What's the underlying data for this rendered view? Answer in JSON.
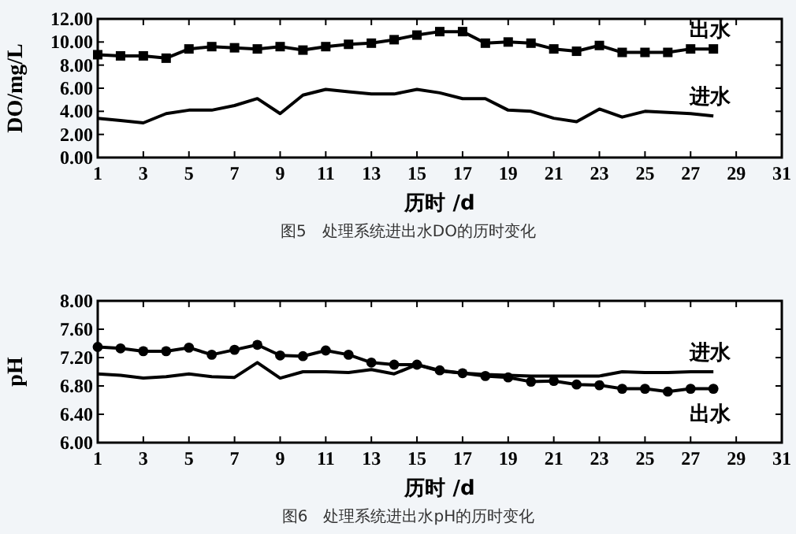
{
  "chart_data": [
    {
      "type": "line",
      "legend": "right",
      "title": "图5　处理系统进出水DO的历时变化",
      "xlabel": "历时 /d",
      "ylabel": "DO/mg/L",
      "x": [
        1,
        2,
        3,
        4,
        5,
        6,
        7,
        8,
        9,
        10,
        11,
        12,
        13,
        14,
        15,
        16,
        17,
        18,
        19,
        20,
        21,
        22,
        23,
        24,
        25,
        26,
        27,
        28
      ],
      "xlim": [
        1,
        31
      ],
      "xticks": [
        1,
        3,
        5,
        7,
        9,
        11,
        13,
        15,
        17,
        19,
        21,
        23,
        25,
        27,
        29,
        31
      ],
      "ylim": [
        0,
        12
      ],
      "yticks": [
        {
          "value": 0,
          "label": "0.00"
        },
        {
          "value": 2,
          "label": "2.00"
        },
        {
          "value": 4,
          "label": "4.00"
        },
        {
          "value": 6,
          "label": "6.00"
        },
        {
          "value": 8,
          "label": "8.00"
        },
        {
          "value": 10,
          "label": "10.00"
        },
        {
          "value": 12,
          "label": "12.00"
        }
      ],
      "series": [
        {
          "name": "出水",
          "color": "#000000",
          "marker": "square",
          "values": [
            8.9,
            8.8,
            8.8,
            8.6,
            9.4,
            9.6,
            9.5,
            9.4,
            9.6,
            9.3,
            9.6,
            9.8,
            9.9,
            10.2,
            10.6,
            10.9,
            10.9,
            9.9,
            10.0,
            9.9,
            9.4,
            9.2,
            9.7,
            9.1,
            9.1,
            9.1,
            9.4,
            9.4
          ]
        },
        {
          "name": "进水",
          "color": "#000000",
          "values": [
            3.4,
            3.2,
            3.0,
            3.8,
            4.1,
            4.1,
            4.5,
            5.1,
            3.8,
            5.4,
            5.9,
            5.7,
            5.5,
            5.5,
            5.9,
            5.6,
            5.1,
            5.1,
            4.1,
            4.0,
            3.4,
            3.1,
            4.2,
            3.5,
            4.0,
            3.9,
            3.8,
            3.6
          ]
        }
      ]
    },
    {
      "type": "line",
      "legend": "right",
      "title": "图6　处理系统进出水pH的历时变化",
      "xlabel": "历时 /d",
      "ylabel": "pH",
      "x": [
        1,
        2,
        3,
        4,
        5,
        6,
        7,
        8,
        9,
        10,
        11,
        12,
        13,
        14,
        15,
        16,
        17,
        18,
        19,
        20,
        21,
        22,
        23,
        24,
        25,
        26,
        27,
        28
      ],
      "xlim": [
        1,
        31
      ],
      "xticks": [
        1,
        3,
        5,
        7,
        9,
        11,
        13,
        15,
        17,
        19,
        21,
        23,
        25,
        27,
        29,
        31
      ],
      "ylim": [
        6,
        8
      ],
      "yticks": [
        {
          "value": 6,
          "label": "6.00"
        },
        {
          "value": 6.4,
          "label": "6.40"
        },
        {
          "value": 6.8,
          "label": "6.80"
        },
        {
          "value": 7.2,
          "label": "7.20"
        },
        {
          "value": 7.6,
          "label": "7.60"
        },
        {
          "value": 8,
          "label": "8.00"
        }
      ],
      "series": [
        {
          "name": "进水",
          "color": "#000000",
          "values": [
            6.97,
            6.95,
            6.91,
            6.93,
            6.97,
            6.93,
            6.92,
            7.13,
            6.91,
            7.0,
            7.0,
            6.99,
            7.03,
            6.97,
            7.1,
            7.01,
            6.98,
            6.96,
            6.95,
            6.94,
            6.94,
            6.94,
            6.94,
            7.0,
            6.99,
            6.99,
            7.0,
            7.0
          ]
        },
        {
          "name": "出水",
          "color": "#000000",
          "marker": "circle",
          "values": [
            7.35,
            7.33,
            7.29,
            7.29,
            7.34,
            7.24,
            7.31,
            7.38,
            7.23,
            7.22,
            7.3,
            7.24,
            7.13,
            7.1,
            7.1,
            7.02,
            6.98,
            6.94,
            6.92,
            6.86,
            6.87,
            6.82,
            6.81,
            6.76,
            6.76,
            6.72,
            6.76,
            6.76
          ]
        }
      ]
    }
  ]
}
